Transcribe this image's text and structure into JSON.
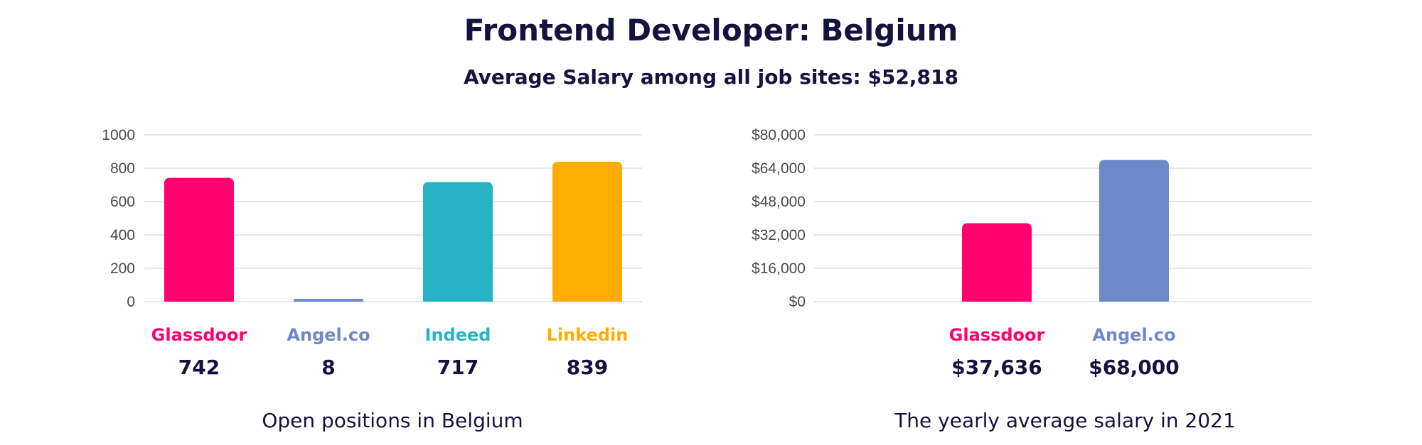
{
  "title": "Frontend Developer: Belgium",
  "subtitle": "Average Salary among all job sites: $52,818",
  "captions": {
    "left": "Open positions in Belgium",
    "right": "The yearly average salary in 2021"
  },
  "chart_data": [
    {
      "type": "bar",
      "categories": [
        "Glassdoor",
        "Angel.co",
        "Indeed",
        "Linkedin"
      ],
      "values": [
        742,
        8,
        717,
        839
      ],
      "value_labels": [
        "742",
        "8",
        "717",
        "839"
      ],
      "colors": [
        "#ff006e",
        "#6d89c9",
        "#25b3c5",
        "#ffac00"
      ],
      "ylim": [
        0,
        1000
      ],
      "yticks": [
        0,
        200,
        400,
        600,
        800,
        1000
      ],
      "ytick_labels": [
        "0",
        "200",
        "400",
        "600",
        "800",
        "1000"
      ],
      "grid": true
    },
    {
      "type": "bar",
      "categories": [
        "Glassdoor",
        "Angel.co"
      ],
      "values": [
        37636,
        68000
      ],
      "value_labels": [
        "$37,636",
        "$68,000"
      ],
      "colors": [
        "#ff006e",
        "#6d89c9"
      ],
      "ylim": [
        0,
        80000
      ],
      "yticks": [
        0,
        16000,
        32000,
        48000,
        64000,
        80000
      ],
      "ytick_labels": [
        "$0",
        "$16,000",
        "$32,000",
        "$48,000",
        "$64,000",
        "$80,000"
      ],
      "grid": true
    }
  ]
}
